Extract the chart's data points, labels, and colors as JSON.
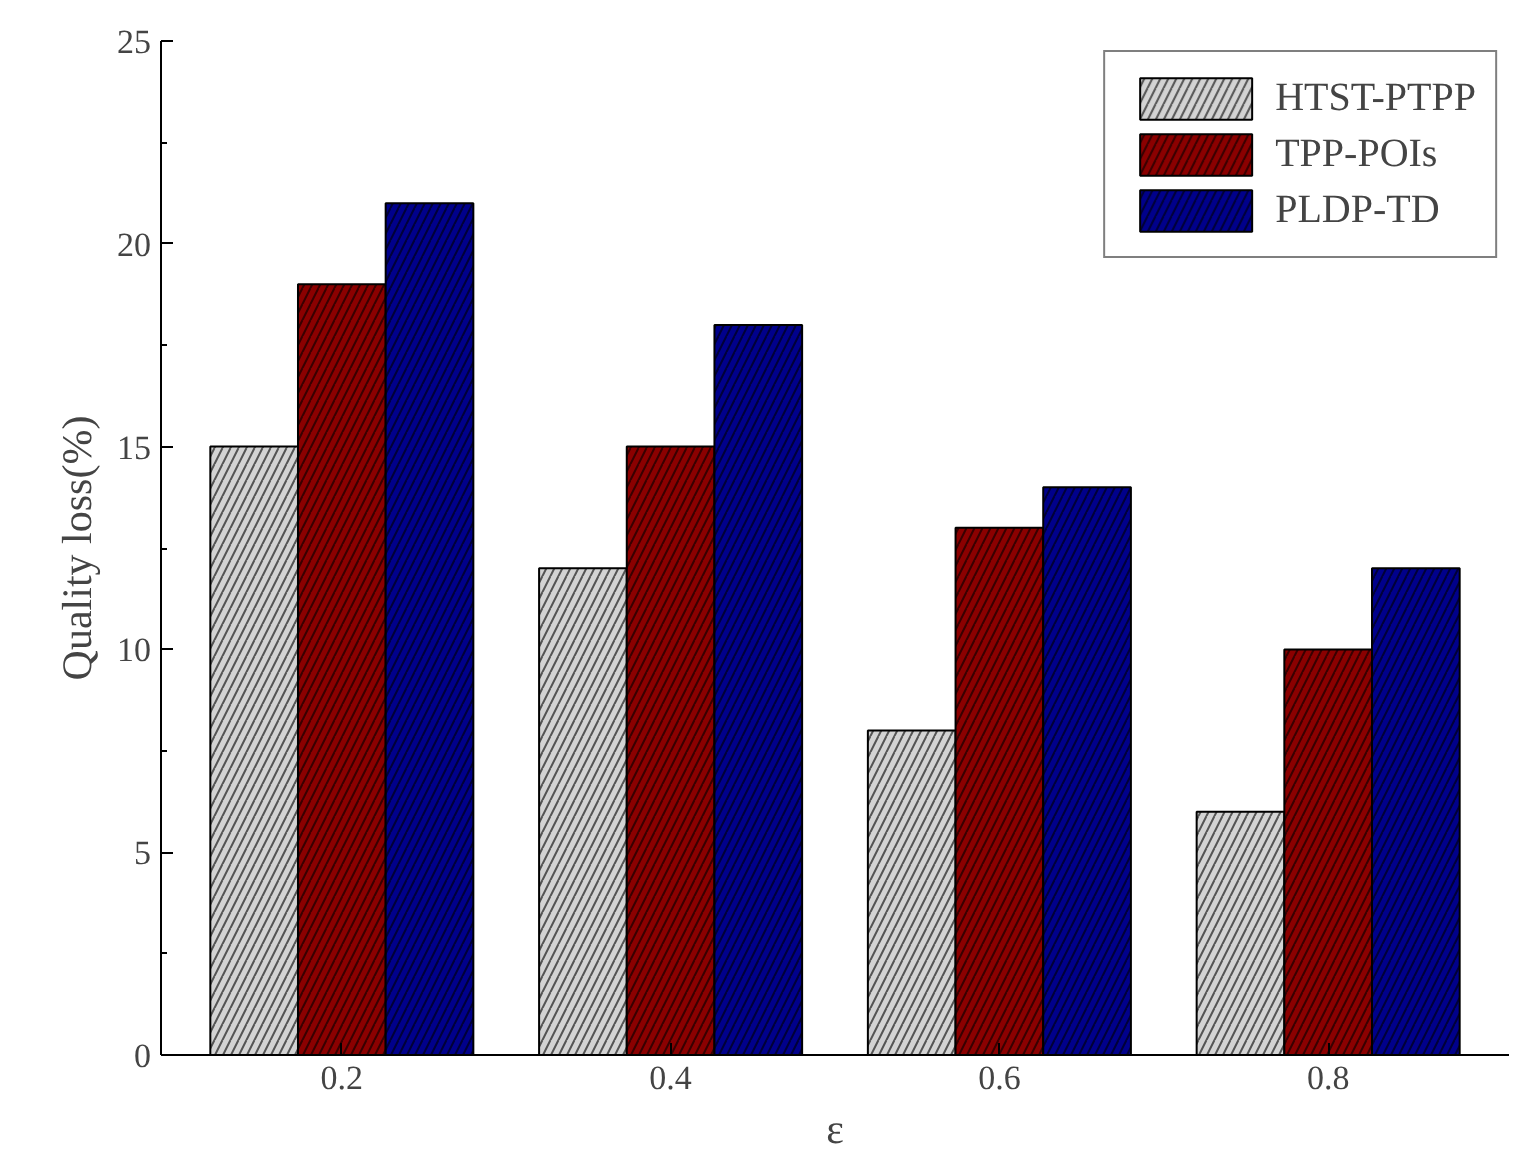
{
  "chart_data": {
    "type": "bar",
    "xlabel": "ε",
    "ylabel": "Quality loss(%)",
    "categories": [
      "0.2",
      "0.4",
      "0.6",
      "0.8"
    ],
    "series": [
      {
        "name": "HTST-PTPP",
        "color": "#d3d3d3",
        "values": [
          15,
          12,
          8,
          6
        ]
      },
      {
        "name": "TPP-POIs",
        "color": "#8b0000",
        "values": [
          19,
          15,
          13,
          10
        ]
      },
      {
        "name": "PLDP-TD",
        "color": "#00008b",
        "values": [
          21,
          18,
          14,
          12
        ]
      }
    ],
    "ylim": [
      0,
      25
    ],
    "yticks": [
      0,
      5,
      10,
      15,
      20,
      25
    ],
    "grid": false,
    "legend": "top right"
  }
}
